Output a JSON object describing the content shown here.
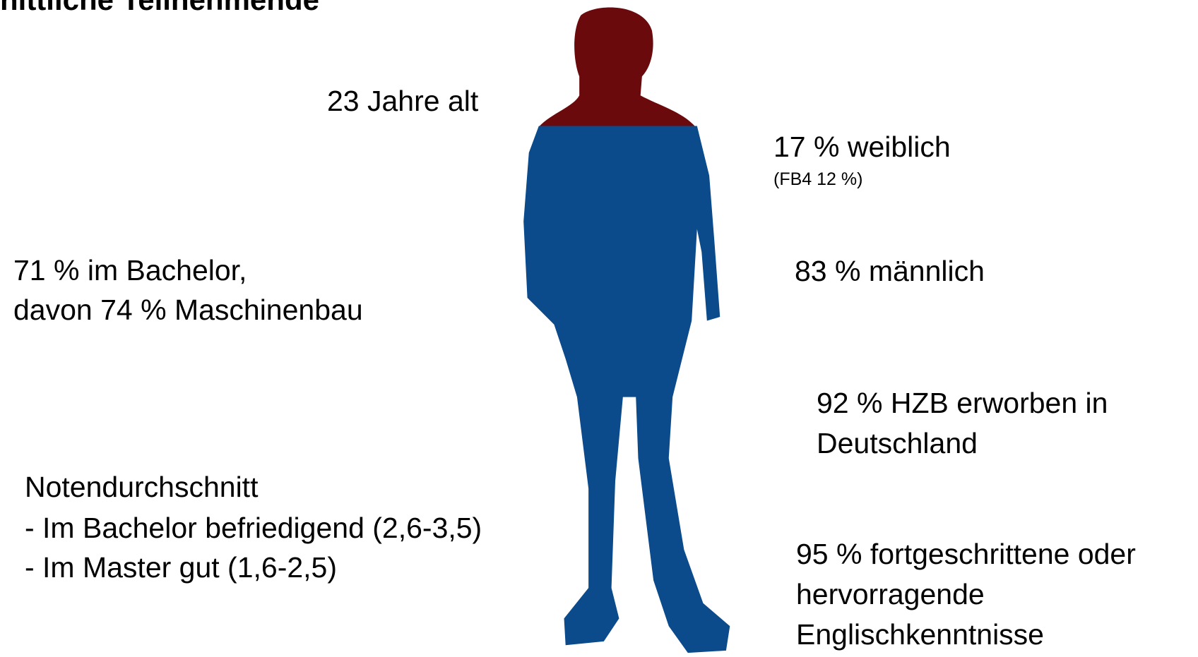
{
  "title": "nittliche Teilnehmende",
  "age": "23 Jahre alt",
  "female": {
    "text": "17 % weiblich",
    "note": "(FB4 12 %)"
  },
  "male": "83 % männlich",
  "bachelor": [
    "71 % im Bachelor,",
    "davon 74 % Maschinenbau"
  ],
  "hzb": [
    "92 % HZB erworben in",
    "Deutschland"
  ],
  "grades": [
    "Notendurchschnitt",
    "- Im Bachelor befriedigend (2,6-3,5)",
    "- Im Master gut (1,6-2,5)"
  ],
  "english": [
    "95 % fortgeschrittene oder",
    "hervorragende",
    "Englischkenntnisse"
  ]
}
